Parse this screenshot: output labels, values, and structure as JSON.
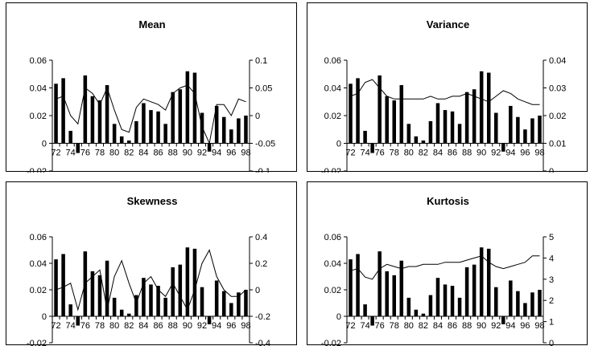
{
  "chart_data": [
    {
      "type": "bar",
      "title": "Mean",
      "years": [
        "72",
        "73",
        "74",
        "75",
        "76",
        "77",
        "78",
        "79",
        "80",
        "81",
        "82",
        "83",
        "84",
        "85",
        "86",
        "87",
        "88",
        "89",
        "90",
        "91",
        "92",
        "93",
        "94",
        "95",
        "96",
        "97",
        "98"
      ],
      "x_tick_labels": [
        "72",
        "74",
        "76",
        "78",
        "80",
        "82",
        "84",
        "86",
        "88",
        "90",
        "92",
        "94",
        "96",
        "98"
      ],
      "bars": [
        0.043,
        0.047,
        0.009,
        -0.007,
        0.049,
        0.034,
        0.031,
        0.042,
        0.014,
        0.005,
        0.002,
        0.016,
        0.029,
        0.024,
        0.023,
        0.014,
        0.037,
        0.039,
        0.052,
        0.051,
        0.022,
        -0.006,
        0.027,
        0.019,
        0.01,
        0.018,
        0.02
      ],
      "line": [
        0.03,
        0.035,
        0.0,
        -0.015,
        0.05,
        0.04,
        0.02,
        0.05,
        0.01,
        -0.025,
        -0.03,
        0.015,
        0.03,
        0.025,
        0.02,
        0.01,
        0.04,
        0.05,
        0.055,
        0.04,
        -0.02,
        -0.05,
        0.02,
        0.02,
        0.0,
        0.03,
        0.025
      ],
      "left_axis": {
        "min": -0.02,
        "max": 0.06,
        "ticks": [
          "-0.02",
          "0",
          "0.02",
          "0.04",
          "0.06"
        ]
      },
      "right_axis": {
        "min": -0.1,
        "max": 0.1,
        "ticks": [
          "-0.1",
          "-0.05",
          "0",
          "0.05",
          "0.1"
        ]
      }
    },
    {
      "type": "bar",
      "title": "Variance",
      "years": [
        "72",
        "73",
        "74",
        "75",
        "76",
        "77",
        "78",
        "79",
        "80",
        "81",
        "82",
        "83",
        "84",
        "85",
        "86",
        "87",
        "88",
        "89",
        "90",
        "91",
        "92",
        "93",
        "94",
        "95",
        "96",
        "97",
        "98"
      ],
      "x_tick_labels": [
        "72",
        "74",
        "76",
        "78",
        "80",
        "82",
        "84",
        "86",
        "88",
        "90",
        "92",
        "94",
        "96",
        "98"
      ],
      "bars": [
        0.043,
        0.047,
        0.009,
        -0.007,
        0.049,
        0.034,
        0.031,
        0.042,
        0.014,
        0.005,
        0.002,
        0.016,
        0.029,
        0.024,
        0.023,
        0.014,
        0.037,
        0.039,
        0.052,
        0.051,
        0.022,
        -0.006,
        0.027,
        0.019,
        0.01,
        0.018,
        0.02
      ],
      "line": [
        0.027,
        0.028,
        0.032,
        0.033,
        0.03,
        0.027,
        0.026,
        0.026,
        0.026,
        0.026,
        0.026,
        0.027,
        0.026,
        0.026,
        0.027,
        0.027,
        0.028,
        0.027,
        0.026,
        0.025,
        0.027,
        0.029,
        0.028,
        0.026,
        0.025,
        0.024,
        0.024
      ],
      "left_axis": {
        "min": -0.02,
        "max": 0.06,
        "ticks": [
          "-0.02",
          "0",
          "0.02",
          "0.04",
          "0.06"
        ]
      },
      "right_axis": {
        "min": 0,
        "max": 0.04,
        "ticks": [
          "0",
          "0.01",
          "0.02",
          "0.03",
          "0.04"
        ]
      }
    },
    {
      "type": "bar",
      "title": "Skewness",
      "years": [
        "72",
        "73",
        "74",
        "75",
        "76",
        "77",
        "78",
        "79",
        "80",
        "81",
        "82",
        "83",
        "84",
        "85",
        "86",
        "87",
        "88",
        "89",
        "90",
        "91",
        "92",
        "93",
        "94",
        "95",
        "96",
        "97",
        "98"
      ],
      "x_tick_labels": [
        "72",
        "74",
        "76",
        "78",
        "80",
        "82",
        "84",
        "86",
        "88",
        "90",
        "92",
        "94",
        "96",
        "98"
      ],
      "bars": [
        0.043,
        0.047,
        0.009,
        -0.007,
        0.049,
        0.034,
        0.031,
        0.042,
        0.014,
        0.005,
        0.002,
        0.016,
        0.029,
        0.024,
        0.023,
        0.014,
        0.037,
        0.039,
        0.052,
        0.051,
        0.022,
        -0.006,
        0.027,
        0.019,
        0.01,
        0.018,
        0.02
      ],
      "line": [
        0.0,
        0.02,
        0.05,
        -0.15,
        0.05,
        0.1,
        0.15,
        -0.15,
        0.1,
        0.22,
        0.05,
        -0.1,
        0.05,
        0.1,
        0.0,
        -0.05,
        0.05,
        -0.05,
        -0.15,
        0.0,
        0.2,
        0.3,
        0.1,
        0.0,
        -0.05,
        -0.05,
        0.0
      ],
      "left_axis": {
        "min": -0.02,
        "max": 0.06,
        "ticks": [
          "-0.02",
          "0",
          "0.02",
          "0.04",
          "0.06"
        ]
      },
      "right_axis": {
        "min": -0.4,
        "max": 0.4,
        "ticks": [
          "-0.4",
          "-0.2",
          "0",
          "0.2",
          "0.4"
        ]
      }
    },
    {
      "type": "bar",
      "title": "Kurtosis",
      "years": [
        "72",
        "73",
        "74",
        "75",
        "76",
        "77",
        "78",
        "79",
        "80",
        "81",
        "82",
        "83",
        "84",
        "85",
        "86",
        "87",
        "88",
        "89",
        "90",
        "91",
        "92",
        "93",
        "94",
        "95",
        "96",
        "97",
        "98"
      ],
      "x_tick_labels": [
        "72",
        "74",
        "76",
        "78",
        "80",
        "82",
        "84",
        "86",
        "88",
        "90",
        "92",
        "94",
        "96",
        "98"
      ],
      "bars": [
        0.043,
        0.047,
        0.009,
        -0.007,
        0.049,
        0.034,
        0.031,
        0.042,
        0.014,
        0.005,
        0.002,
        0.016,
        0.029,
        0.024,
        0.023,
        0.014,
        0.037,
        0.039,
        0.052,
        0.051,
        0.022,
        -0.006,
        0.027,
        0.019,
        0.01,
        0.018,
        0.02
      ],
      "line": [
        3.4,
        3.5,
        3.1,
        3.0,
        3.5,
        3.7,
        3.6,
        3.5,
        3.6,
        3.6,
        3.7,
        3.7,
        3.7,
        3.8,
        3.8,
        3.8,
        3.9,
        4.0,
        4.1,
        3.8,
        3.6,
        3.5,
        3.6,
        3.7,
        3.8,
        4.1,
        4.1
      ],
      "left_axis": {
        "min": -0.02,
        "max": 0.06,
        "ticks": [
          "-0.02",
          "0",
          "0.02",
          "0.04",
          "0.06"
        ]
      },
      "right_axis": {
        "min": 0,
        "max": 5,
        "ticks": [
          "0",
          "1",
          "2",
          "3",
          "4",
          "5"
        ]
      }
    }
  ]
}
